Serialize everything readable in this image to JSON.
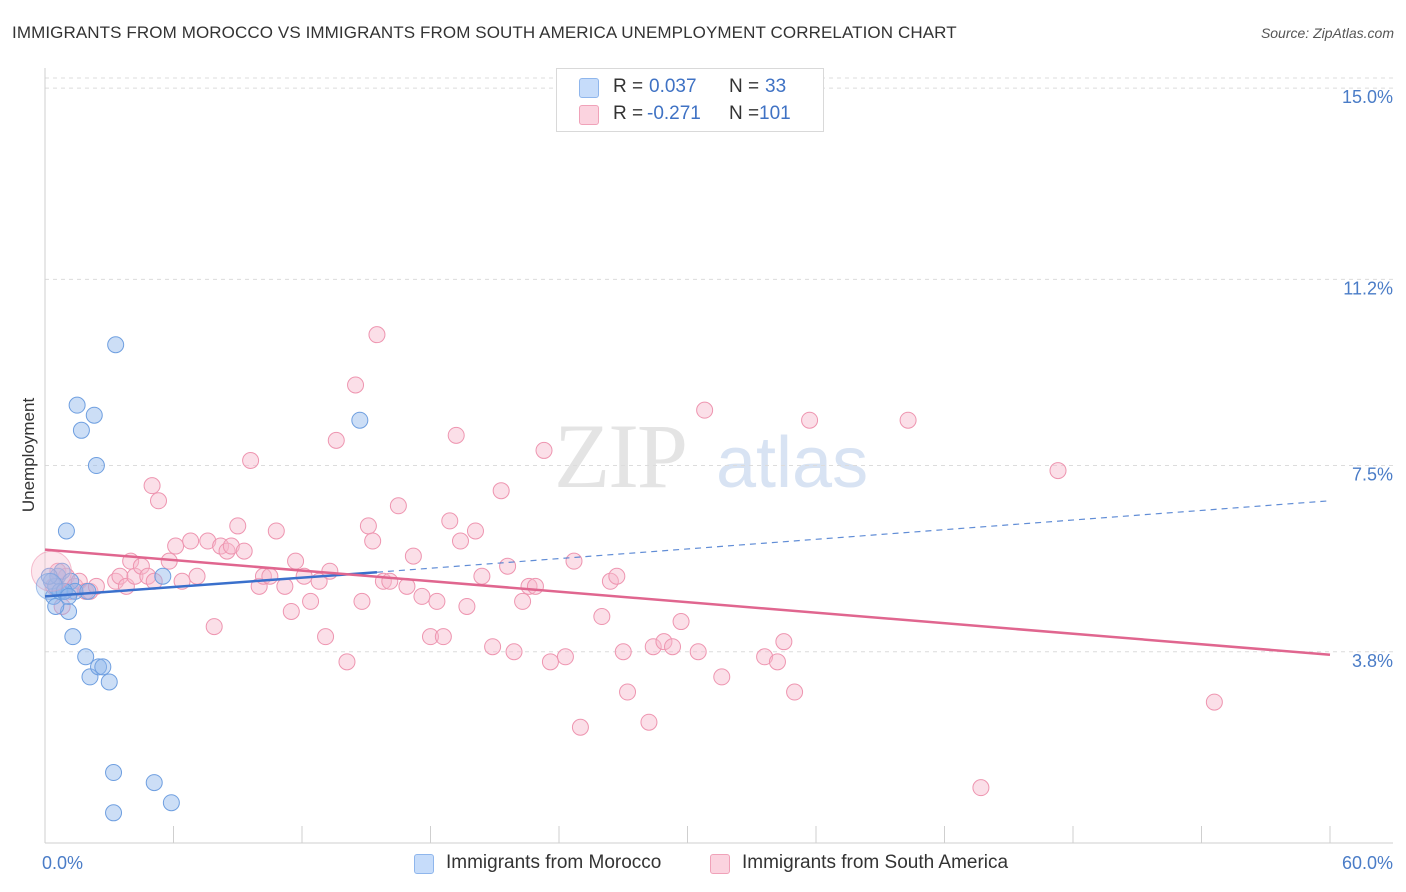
{
  "title": "IMMIGRANTS FROM MOROCCO VS IMMIGRANTS FROM SOUTH AMERICA UNEMPLOYMENT CORRELATION CHART",
  "source": "Source: ZipAtlas.com",
  "watermark": {
    "zip": "ZIP",
    "atlas": "atlas"
  },
  "legend": {
    "rows": [
      {
        "r_label": "R =",
        "r_value": "0.037",
        "n_label": "N =",
        "n_value": "33",
        "color": "#a9c8f3"
      },
      {
        "r_label": "R =",
        "r_value": "-0.271",
        "n_label": "N =",
        "n_value": "101",
        "color": "#f6b9cb"
      }
    ]
  },
  "bottom_legend": [
    {
      "label": "Immigrants from Morocco",
      "color": "#a9c8f3"
    },
    {
      "label": "Immigrants from South America",
      "color": "#f6b9cb"
    }
  ],
  "chart_data": {
    "type": "scatter",
    "title": "IMMIGRANTS FROM MOROCCO VS IMMIGRANTS FROM SOUTH AMERICA UNEMPLOYMENT CORRELATION CHART",
    "xlabel": "",
    "ylabel": "Unemployment",
    "xlim": [
      0,
      60
    ],
    "ylim": [
      0,
      15.2
    ],
    "x_tick_labels": [
      {
        "value": 0,
        "label": "0.0%"
      },
      {
        "value": 60,
        "label": "60.0%"
      }
    ],
    "y_tick_labels": [
      {
        "value": 15.0,
        "label": "15.0%"
      },
      {
        "value": 11.2,
        "label": "11.2%"
      },
      {
        "value": 7.5,
        "label": "7.5%"
      },
      {
        "value": 3.8,
        "label": "3.8%"
      }
    ],
    "x_minor_ticks": [
      6,
      12,
      18,
      24,
      30,
      36,
      42,
      48,
      54,
      60
    ],
    "grid": true,
    "series": [
      {
        "name": "Immigrants from Morocco",
        "color": "#8fb6ec",
        "stroke": "#6f9fe0",
        "trend": {
          "x": [
            0,
            15.5
          ],
          "y": [
            4.9,
            5.38
          ],
          "color": "#3a70cc",
          "dashed_extension": {
            "x": [
              15.5,
              60
            ],
            "y": [
              5.38,
              6.8
            ]
          }
        },
        "points": [
          [
            0.3,
            5.2
          ],
          [
            0.4,
            4.9
          ],
          [
            0.5,
            5.1
          ],
          [
            0.6,
            5.3
          ],
          [
            0.7,
            5.0
          ],
          [
            0.8,
            5.4
          ],
          [
            0.9,
            5.0
          ],
          [
            1.0,
            6.2
          ],
          [
            1.1,
            4.6
          ],
          [
            1.2,
            5.2
          ],
          [
            1.3,
            4.1
          ],
          [
            1.4,
            5.0
          ],
          [
            1.5,
            8.7
          ],
          [
            1.7,
            8.2
          ],
          [
            1.9,
            3.7
          ],
          [
            2.0,
            5.0
          ],
          [
            2.1,
            3.3
          ],
          [
            2.3,
            8.5
          ],
          [
            2.4,
            7.5
          ],
          [
            2.5,
            3.5
          ],
          [
            2.7,
            3.5
          ],
          [
            3.0,
            3.2
          ],
          [
            3.3,
            9.9
          ],
          [
            3.2,
            1.4
          ],
          [
            3.2,
            0.6
          ],
          [
            5.1,
            1.2
          ],
          [
            5.5,
            5.3
          ],
          [
            5.9,
            0.8
          ],
          [
            14.7,
            8.4
          ],
          [
            0.5,
            4.7
          ],
          [
            0.9,
            5.0
          ],
          [
            1.1,
            4.9
          ],
          [
            0.2,
            5.3
          ]
        ]
      },
      {
        "name": "Immigrants from South America",
        "color": "#f6b9cb",
        "stroke": "#ee95b0",
        "trend": {
          "x": [
            0,
            60
          ],
          "y": [
            5.83,
            3.74
          ],
          "color": "#e0668f"
        },
        "points": [
          [
            0.4,
            5.1
          ],
          [
            0.6,
            5.4
          ],
          [
            0.8,
            4.7
          ],
          [
            1.0,
            5.3
          ],
          [
            1.2,
            5.0
          ],
          [
            1.4,
            5.1
          ],
          [
            1.6,
            5.2
          ],
          [
            1.9,
            5.0
          ],
          [
            2.1,
            5.0
          ],
          [
            2.4,
            5.1
          ],
          [
            3.3,
            5.2
          ],
          [
            3.5,
            5.3
          ],
          [
            3.8,
            5.1
          ],
          [
            4.0,
            5.6
          ],
          [
            4.2,
            5.3
          ],
          [
            4.5,
            5.5
          ],
          [
            4.8,
            5.3
          ],
          [
            5.0,
            7.1
          ],
          [
            5.1,
            5.2
          ],
          [
            5.3,
            6.8
          ],
          [
            5.8,
            5.6
          ],
          [
            6.1,
            5.9
          ],
          [
            6.4,
            5.2
          ],
          [
            6.8,
            6.0
          ],
          [
            7.1,
            5.3
          ],
          [
            7.6,
            6.0
          ],
          [
            7.9,
            4.3
          ],
          [
            8.2,
            5.9
          ],
          [
            8.5,
            5.8
          ],
          [
            8.7,
            5.9
          ],
          [
            9.0,
            6.3
          ],
          [
            9.3,
            5.8
          ],
          [
            9.6,
            7.6
          ],
          [
            10.0,
            5.1
          ],
          [
            10.2,
            5.3
          ],
          [
            10.5,
            5.3
          ],
          [
            10.8,
            6.2
          ],
          [
            11.2,
            5.1
          ],
          [
            11.5,
            4.6
          ],
          [
            11.7,
            5.6
          ],
          [
            12.1,
            5.3
          ],
          [
            12.4,
            4.8
          ],
          [
            12.8,
            5.2
          ],
          [
            13.1,
            4.1
          ],
          [
            13.3,
            5.4
          ],
          [
            13.6,
            8.0
          ],
          [
            14.1,
            3.6
          ],
          [
            14.5,
            9.1
          ],
          [
            14.8,
            4.8
          ],
          [
            15.1,
            6.3
          ],
          [
            15.3,
            6.0
          ],
          [
            15.5,
            10.1
          ],
          [
            15.8,
            5.2
          ],
          [
            16.1,
            5.2
          ],
          [
            16.5,
            6.7
          ],
          [
            16.9,
            5.1
          ],
          [
            17.2,
            5.7
          ],
          [
            17.6,
            4.9
          ],
          [
            18.0,
            4.1
          ],
          [
            18.3,
            4.8
          ],
          [
            18.6,
            4.1
          ],
          [
            18.9,
            6.4
          ],
          [
            19.2,
            8.1
          ],
          [
            19.4,
            6.0
          ],
          [
            19.7,
            4.7
          ],
          [
            20.1,
            6.2
          ],
          [
            20.4,
            5.3
          ],
          [
            20.9,
            3.9
          ],
          [
            21.3,
            7.0
          ],
          [
            21.6,
            5.5
          ],
          [
            21.9,
            3.8
          ],
          [
            22.3,
            4.8
          ],
          [
            22.6,
            5.1
          ],
          [
            22.9,
            5.1
          ],
          [
            23.3,
            7.8
          ],
          [
            23.6,
            3.6
          ],
          [
            24.3,
            3.7
          ],
          [
            24.7,
            5.6
          ],
          [
            25.0,
            2.3
          ],
          [
            26.0,
            4.5
          ],
          [
            26.4,
            5.2
          ],
          [
            26.7,
            5.3
          ],
          [
            27.0,
            3.8
          ],
          [
            27.2,
            3.0
          ],
          [
            28.2,
            2.4
          ],
          [
            28.4,
            3.9
          ],
          [
            28.9,
            4.0
          ],
          [
            29.3,
            3.9
          ],
          [
            29.7,
            4.4
          ],
          [
            30.5,
            3.8
          ],
          [
            30.8,
            8.6
          ],
          [
            31.6,
            3.3
          ],
          [
            33.6,
            3.7
          ],
          [
            34.2,
            3.6
          ],
          [
            34.5,
            4.0
          ],
          [
            35.0,
            3.0
          ],
          [
            35.7,
            8.4
          ],
          [
            40.3,
            8.4
          ],
          [
            43.7,
            1.1
          ],
          [
            47.3,
            7.4
          ],
          [
            54.6,
            2.8
          ]
        ]
      }
    ]
  }
}
